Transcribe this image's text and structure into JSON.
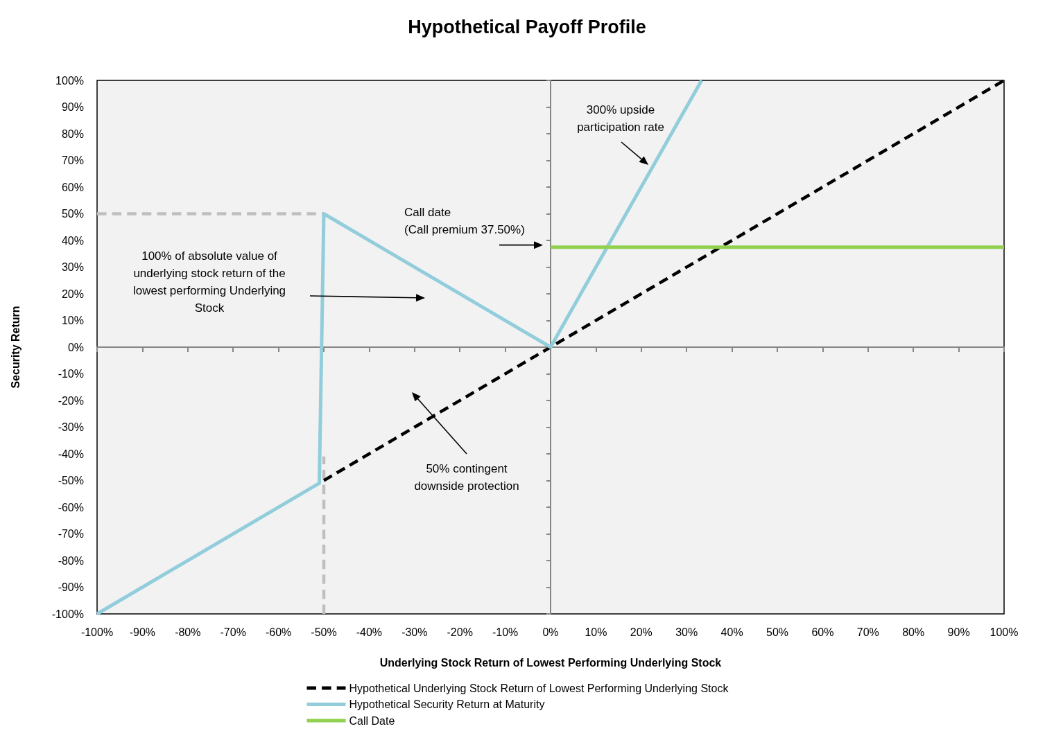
{
  "chart_data": {
    "type": "line",
    "title": "Hypothetical Payoff Profile",
    "xlabel": "Underlying Stock Return of Lowest Performing Underlying Stock",
    "ylabel": "Security Return",
    "xlim": [
      -100,
      100
    ],
    "ylim": [
      -100,
      100
    ],
    "xticks": [
      {
        "value": -100,
        "label": "-100%"
      },
      {
        "value": -90,
        "label": "-90%"
      },
      {
        "value": -80,
        "label": "-80%"
      },
      {
        "value": -70,
        "label": "-70%"
      },
      {
        "value": -60,
        "label": "-60%"
      },
      {
        "value": -50,
        "label": "-50%"
      },
      {
        "value": -40,
        "label": "-40%"
      },
      {
        "value": -30,
        "label": "-30%"
      },
      {
        "value": -20,
        "label": "-20%"
      },
      {
        "value": -10,
        "label": "-10%"
      },
      {
        "value": 0,
        "label": "0%"
      },
      {
        "value": 10,
        "label": "10%"
      },
      {
        "value": 20,
        "label": "20%"
      },
      {
        "value": 30,
        "label": "30%"
      },
      {
        "value": 40,
        "label": "40%"
      },
      {
        "value": 50,
        "label": "50%"
      },
      {
        "value": 60,
        "label": "60%"
      },
      {
        "value": 70,
        "label": "70%"
      },
      {
        "value": 80,
        "label": "80%"
      },
      {
        "value": 90,
        "label": "90%"
      },
      {
        "value": 100,
        "label": "100%"
      }
    ],
    "yticks": [
      {
        "value": -100,
        "label": "-100%"
      },
      {
        "value": -90,
        "label": "-90%"
      },
      {
        "value": -80,
        "label": "-80%"
      },
      {
        "value": -70,
        "label": "-70%"
      },
      {
        "value": -60,
        "label": "-60%"
      },
      {
        "value": -50,
        "label": "-50%"
      },
      {
        "value": -40,
        "label": "-40%"
      },
      {
        "value": -30,
        "label": "-30%"
      },
      {
        "value": -20,
        "label": "-20%"
      },
      {
        "value": -10,
        "label": "-10%"
      },
      {
        "value": 0,
        "label": "0%"
      },
      {
        "value": 10,
        "label": "10%"
      },
      {
        "value": 20,
        "label": "20%"
      },
      {
        "value": 30,
        "label": "30%"
      },
      {
        "value": 40,
        "label": "40%"
      },
      {
        "value": 50,
        "label": "50%"
      },
      {
        "value": 60,
        "label": "60%"
      },
      {
        "value": 70,
        "label": "70%"
      },
      {
        "value": 80,
        "label": "80%"
      },
      {
        "value": 90,
        "label": "90%"
      },
      {
        "value": 100,
        "label": "100%"
      }
    ],
    "series": [
      {
        "name": "Hypothetical Underlying Stock Return of Lowest Performing Underlying Stock",
        "color": "#000000",
        "line_style": "dashed",
        "x": [
          -50,
          100
        ],
        "values": [
          -50,
          100
        ]
      },
      {
        "name": "Hypothetical Security Return at Maturity",
        "color": "#92cddc",
        "line_style": "solid",
        "x": [
          -100,
          -51,
          -50,
          0,
          33.3
        ],
        "values": [
          -100,
          -51,
          50,
          0,
          100
        ]
      },
      {
        "name": "Call Date",
        "color": "#92d050",
        "line_style": "solid",
        "x": [
          0,
          100
        ],
        "values": [
          37.5,
          37.5
        ]
      },
      {
        "color": "#bfbfbf",
        "line_style": "dashed",
        "x": [
          -100,
          -50
        ],
        "values": [
          50,
          50
        ]
      },
      {
        "color": "#bfbfbf",
        "line_style": "dashed",
        "x": [
          -50,
          -50
        ],
        "values": [
          -100,
          -41
        ]
      }
    ],
    "marker": "none",
    "legend": "bottom",
    "annotations": [
      "300% upside\nparticipation rate",
      {
        "text": "Call date\n(Call premium 37.50%)",
        "x": 0,
        "y": 37.5
      },
      "100% of absolute value of\nunderlying stock return of the\nlowest performing Underlying\nStock",
      "50% contingent\ndownside protection"
    ]
  }
}
